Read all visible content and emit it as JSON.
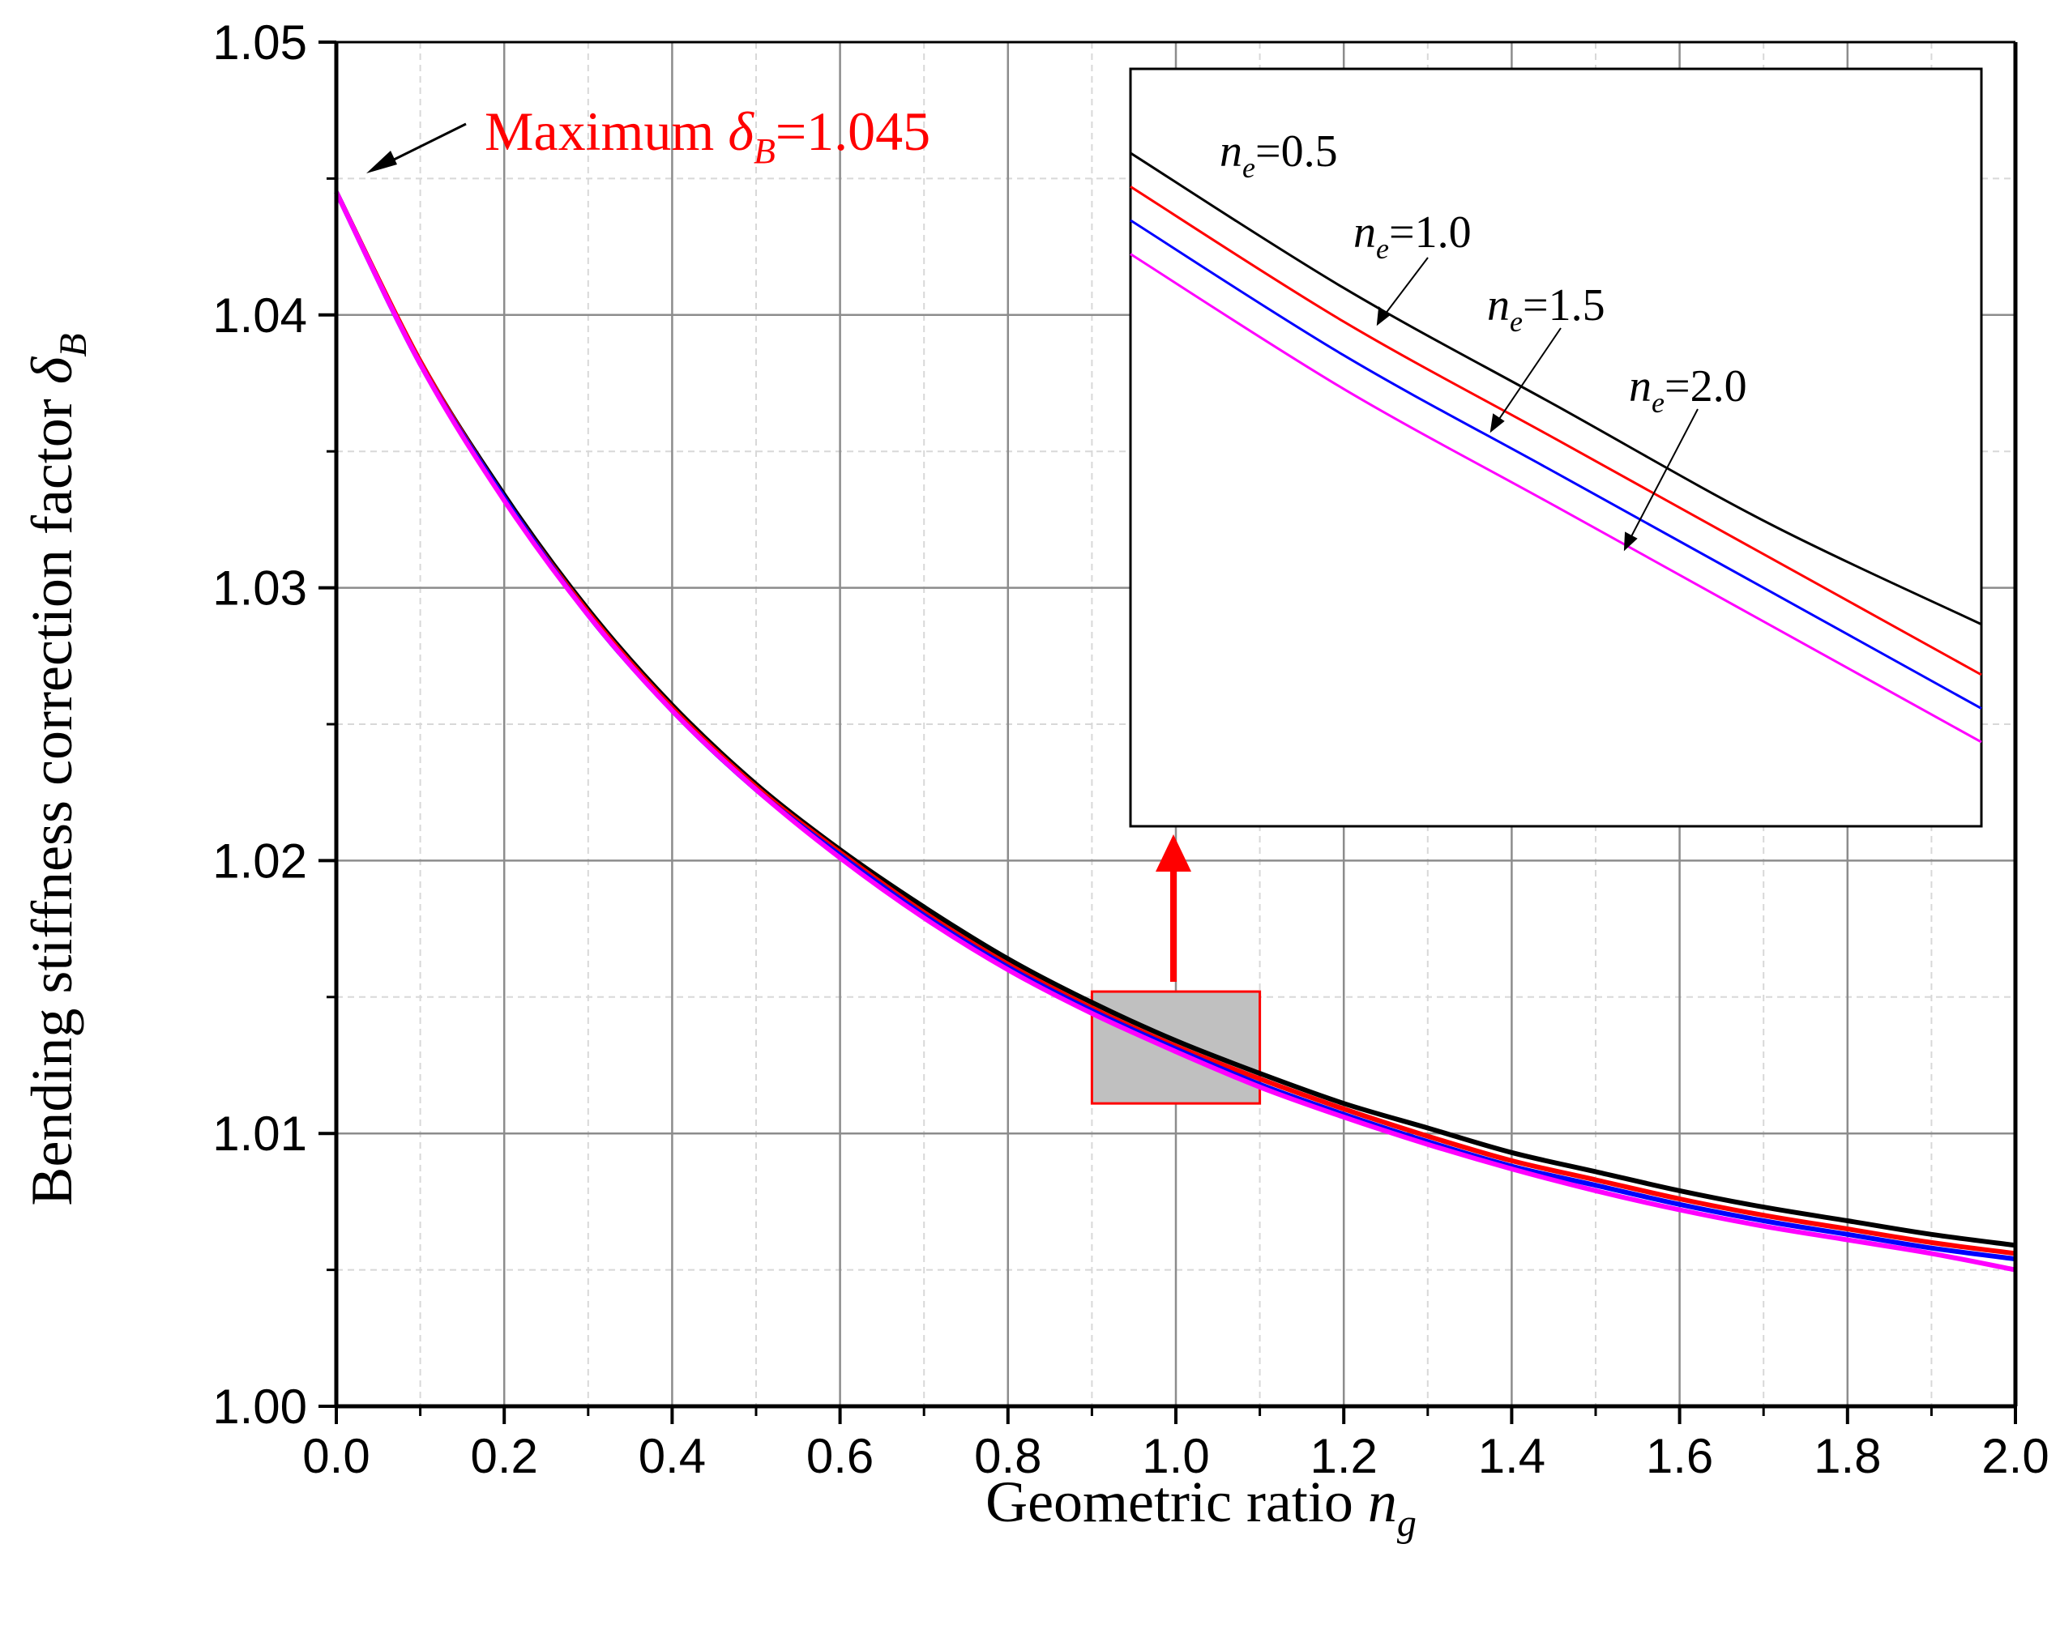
{
  "chart_data": {
    "type": "line",
    "title": "",
    "xlabel": {
      "text": "Geometric ratio ",
      "var": "n",
      "sub": "g"
    },
    "ylabel": {
      "text": "Bending stiffness correction factor ",
      "var": "δ",
      "sub": "B"
    },
    "xlim": [
      0.0,
      2.0
    ],
    "ylim": [
      1.0,
      1.05
    ],
    "x_ticks": [
      "0.0",
      "0.2",
      "0.4",
      "0.6",
      "0.8",
      "1.0",
      "1.2",
      "1.4",
      "1.6",
      "1.8",
      "2.0"
    ],
    "y_ticks": [
      "1.00",
      "1.01",
      "1.02",
      "1.03",
      "1.04",
      "1.05"
    ],
    "grid": true,
    "x": [
      0.0,
      0.1,
      0.2,
      0.3,
      0.4,
      0.5,
      0.6,
      0.7,
      0.8,
      0.9,
      1.0,
      1.1,
      1.2,
      1.3,
      1.4,
      1.5,
      1.6,
      1.7,
      1.8,
      1.9,
      2.0
    ],
    "series": [
      {
        "name": "n_e=0.5",
        "color": "#000000",
        "values": [
          1.0445,
          1.0383,
          1.0334,
          1.0292,
          1.0257,
          1.0228,
          1.0204,
          1.0183,
          1.0164,
          1.0148,
          1.0134,
          1.0122,
          1.0111,
          1.0102,
          1.0093,
          1.0086,
          1.0079,
          1.0073,
          1.0068,
          1.0063,
          1.0059
        ]
      },
      {
        "name": "n_e=1.0",
        "color": "#ff0000",
        "values": [
          1.0445,
          1.0383,
          1.0333,
          1.0291,
          1.0256,
          1.0227,
          1.0203,
          1.0181,
          1.0162,
          1.0146,
          1.0132,
          1.012,
          1.0109,
          1.0099,
          1.009,
          1.0083,
          1.0076,
          1.007,
          1.0065,
          1.006,
          1.0056
        ]
      },
      {
        "name": "n_e=1.5",
        "color": "#0000ff",
        "values": [
          1.0445,
          1.0382,
          1.0333,
          1.029,
          1.0255,
          1.0226,
          1.0202,
          1.018,
          1.0161,
          1.0145,
          1.0131,
          1.0118,
          1.0107,
          1.0097,
          1.0088,
          1.0081,
          1.0074,
          1.0068,
          1.0063,
          1.0058,
          1.0054
        ]
      },
      {
        "name": "n_e=2.0",
        "color": "#ff00ff",
        "values": [
          1.0445,
          1.0382,
          1.0332,
          1.029,
          1.0255,
          1.0226,
          1.0201,
          1.0179,
          1.016,
          1.0144,
          1.013,
          1.0117,
          1.0106,
          1.0096,
          1.0087,
          1.0079,
          1.0072,
          1.0066,
          1.0061,
          1.0056,
          1.005
        ]
      }
    ],
    "annotation": {
      "prefix": "Maximum ",
      "var": "δ",
      "sub": "B",
      "suffix": "=1.045",
      "color": "#ff0000"
    },
    "zoom_region": {
      "x_range": [
        0.9,
        1.1
      ],
      "y_range": [
        1.0111,
        1.0152
      ],
      "fill": "#c0c0c0",
      "edge": "#ff0000"
    },
    "inset": {
      "x": [
        0.9,
        0.95,
        1.0,
        1.05,
        1.1
      ],
      "ylim": [
        1.0109,
        1.0154
      ],
      "labels": [
        {
          "var": "n",
          "sub": "e",
          "value": "=0.5"
        },
        {
          "var": "n",
          "sub": "e",
          "value": "=1.0"
        },
        {
          "var": "n",
          "sub": "e",
          "value": "=1.5"
        },
        {
          "var": "n",
          "sub": "e",
          "value": "=2.0"
        }
      ],
      "series": [
        {
          "name": "n_e=0.5",
          "color": "#000000",
          "values": [
            1.0149,
            1.0141,
            1.0134,
            1.0127,
            1.0121
          ]
        },
        {
          "name": "n_e=1.0",
          "color": "#ff0000",
          "values": [
            1.0147,
            1.0139,
            1.0132,
            1.0125,
            1.0118
          ]
        },
        {
          "name": "n_e=1.5",
          "color": "#0000ff",
          "values": [
            1.0145,
            1.0137,
            1.013,
            1.0123,
            1.0116
          ]
        },
        {
          "name": "n_e=2.0",
          "color": "#ff00ff",
          "values": [
            1.0143,
            1.0135,
            1.0128,
            1.0121,
            1.0114
          ]
        }
      ]
    }
  }
}
